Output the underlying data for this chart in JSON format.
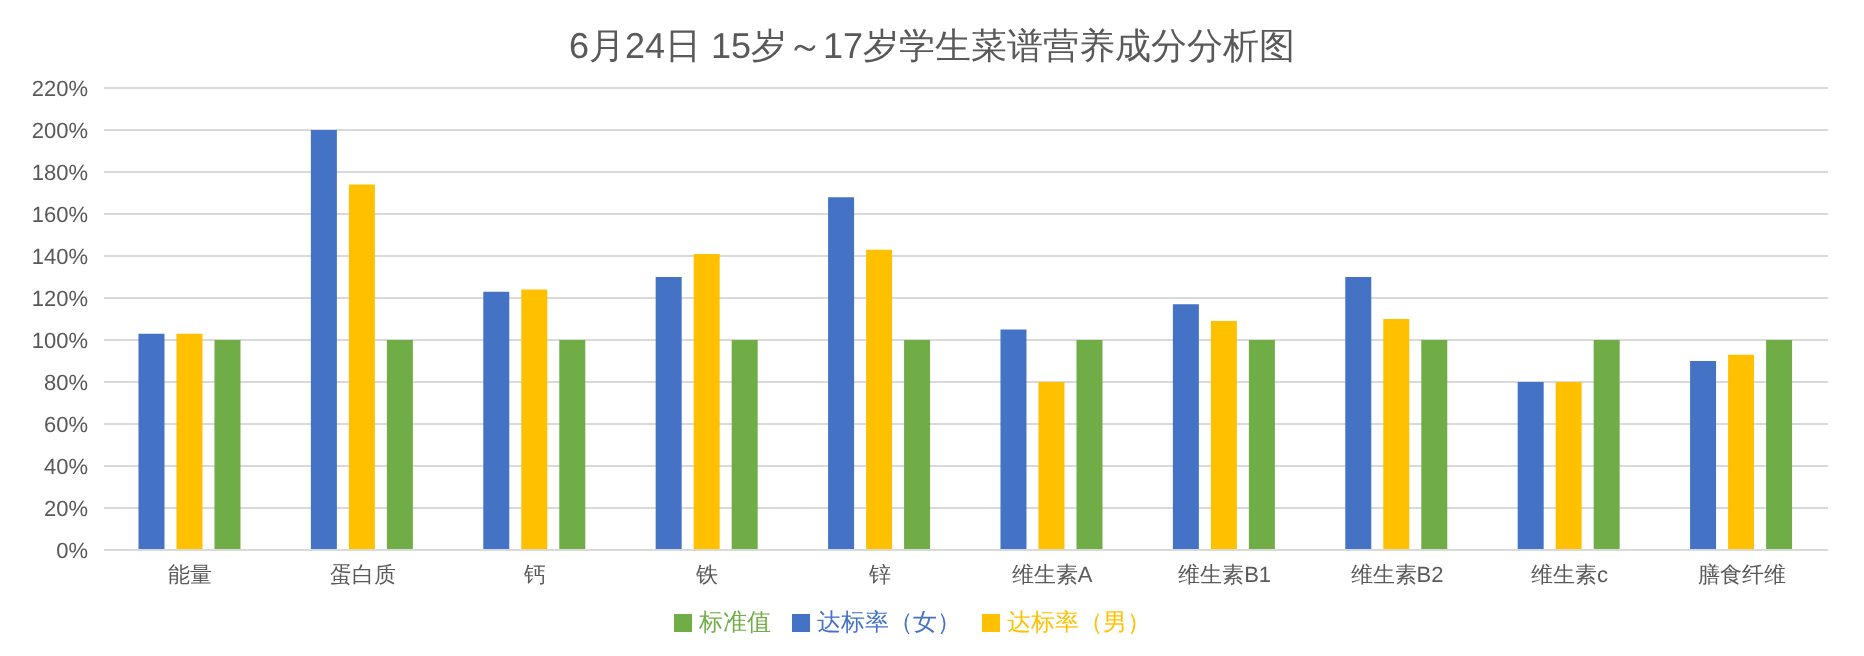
{
  "chart_data": {
    "type": "bar",
    "title": "6月24日 15岁～17岁学生菜谱营养成分分析图",
    "categories": [
      "能量",
      "蛋白质",
      "钙",
      "铁",
      "锌",
      "维生素A",
      "维生素B1",
      "维生素B2",
      "维生素c",
      "膳食纤维"
    ],
    "series": [
      {
        "name": "达标率（女）",
        "color": "#4472c4",
        "values": [
          103,
          200,
          123,
          130,
          168,
          105,
          117,
          130,
          80,
          90
        ]
      },
      {
        "name": "达标率（男）",
        "color": "#ffc000",
        "values": [
          103,
          174,
          124,
          141,
          143,
          80,
          109,
          110,
          80,
          93
        ]
      },
      {
        "name": "标准值",
        "color": "#70ad47",
        "values": [
          100,
          100,
          100,
          100,
          100,
          100,
          100,
          100,
          100,
          100
        ]
      }
    ],
    "ylim": [
      0,
      220
    ],
    "yticks": [
      {
        "value": 0,
        "label": "0%"
      },
      {
        "value": 20,
        "label": "20%"
      },
      {
        "value": 40,
        "label": "40%"
      },
      {
        "value": 60,
        "label": "60%"
      },
      {
        "value": 80,
        "label": "80%"
      },
      {
        "value": 100,
        "label": "100%"
      },
      {
        "value": 120,
        "label": "120%"
      },
      {
        "value": 140,
        "label": "140%"
      },
      {
        "value": 160,
        "label": "160%"
      },
      {
        "value": 180,
        "label": "180%"
      },
      {
        "value": 200,
        "label": "200%"
      },
      {
        "value": 220,
        "label": "220%"
      }
    ],
    "grid": "y",
    "legend": "bottom"
  }
}
